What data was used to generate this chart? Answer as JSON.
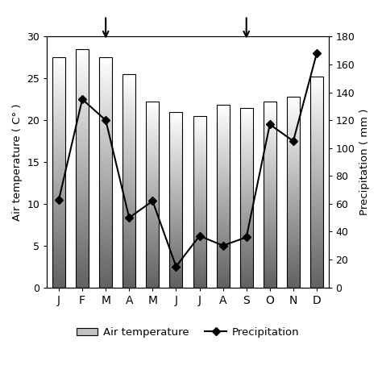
{
  "months": [
    "J",
    "F",
    "M",
    "A",
    "M",
    "J",
    "J",
    "A",
    "S",
    "O",
    "N",
    "D"
  ],
  "air_temp": [
    27.5,
    28.5,
    27.5,
    25.5,
    22.2,
    21.0,
    20.5,
    21.8,
    21.5,
    22.2,
    22.8,
    25.2
  ],
  "precipitation": [
    63,
    135,
    120,
    50,
    62,
    15,
    37,
    30,
    36,
    117,
    105,
    168
  ],
  "temp_ylim": [
    0,
    30
  ],
  "precip_ylim": [
    0,
    180
  ],
  "temp_yticks": [
    0,
    5,
    10,
    15,
    20,
    25,
    30
  ],
  "precip_yticks": [
    0,
    20,
    40,
    60,
    80,
    100,
    120,
    140,
    160,
    180
  ],
  "ylabel_left": "Air temperature ( C° )",
  "ylabel_right": "Precipitation ( mm )",
  "arrow1_month_idx": 2,
  "arrow2_month_idx": 8,
  "legend_bar_label": "Air temperature",
  "legend_line_label": "Precipitation",
  "figsize": [
    4.74,
    4.74
  ],
  "dpi": 100,
  "bar_width": 0.55
}
